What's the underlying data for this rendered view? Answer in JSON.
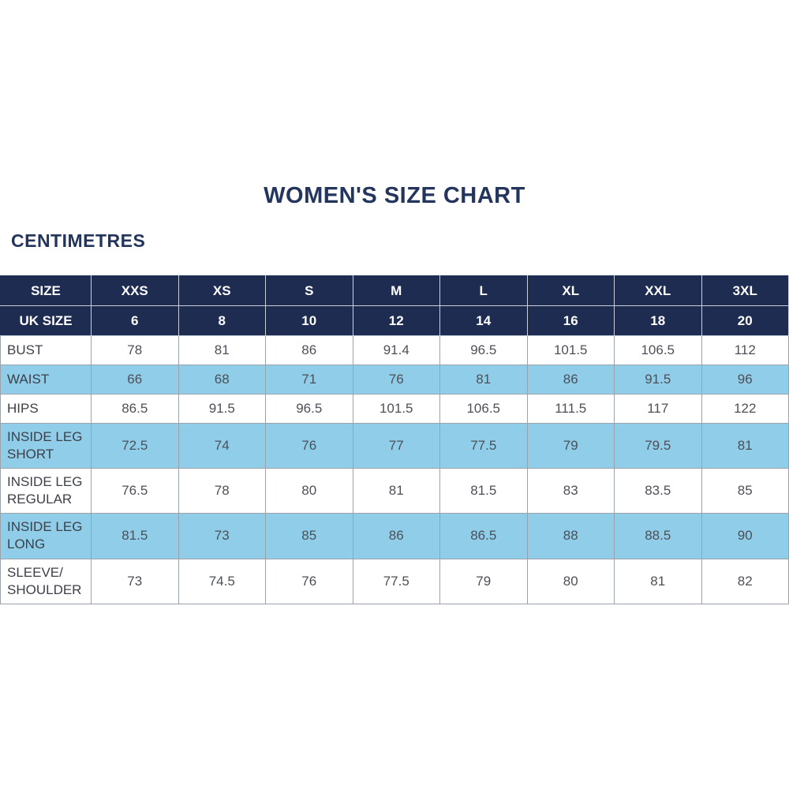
{
  "page": {
    "title": "WOMEN'S SIZE CHART",
    "unit_label": "CENTIMETRES"
  },
  "colors": {
    "header_background": "#1e2c52",
    "header_text": "#ffffff",
    "shaded_row_background": "#8fcde9",
    "title_text": "#23355c",
    "cell_text": "#4d5058",
    "grid_line": "#9aa2ab"
  },
  "chart_data": {
    "type": "table",
    "title": "WOMEN'S SIZE CHART",
    "unit_label": "CENTIMETRES",
    "header_row": {
      "label": "SIZE",
      "sizes": [
        "XXS",
        "XS",
        "S",
        "M",
        "L",
        "XL",
        "XXL",
        "3XL"
      ]
    },
    "uk_size_row": {
      "label": "UK SIZE",
      "values": [
        "6",
        "8",
        "10",
        "12",
        "14",
        "16",
        "18",
        "20"
      ]
    },
    "measurement_rows": [
      {
        "label": "BUST",
        "values": [
          "78",
          "81",
          "86",
          "91.4",
          "96.5",
          "101.5",
          "106.5",
          "112"
        ]
      },
      {
        "label": "WAIST",
        "values": [
          "66",
          "68",
          "71",
          "76",
          "81",
          "86",
          "91.5",
          "96"
        ]
      },
      {
        "label": "HIPS",
        "values": [
          "86.5",
          "91.5",
          "96.5",
          "101.5",
          "106.5",
          "111.5",
          "117",
          "122"
        ]
      },
      {
        "label": "INSIDE LEG SHORT",
        "values": [
          "72.5",
          "74",
          "76",
          "77",
          "77.5",
          "79",
          "79.5",
          "81"
        ]
      },
      {
        "label": "INSIDE LEG REGULAR",
        "values": [
          "76.5",
          "78",
          "80",
          "81",
          "81.5",
          "83",
          "83.5",
          "85"
        ]
      },
      {
        "label": "INSIDE LEG LONG",
        "values": [
          "81.5",
          "73",
          "85",
          "86",
          "86.5",
          "88",
          "88.5",
          "90"
        ]
      },
      {
        "label": "SLEEVE/ SHOULDER",
        "values": [
          "73",
          "74.5",
          "76",
          "77.5",
          "79",
          "80",
          "81",
          "82"
        ]
      }
    ]
  }
}
